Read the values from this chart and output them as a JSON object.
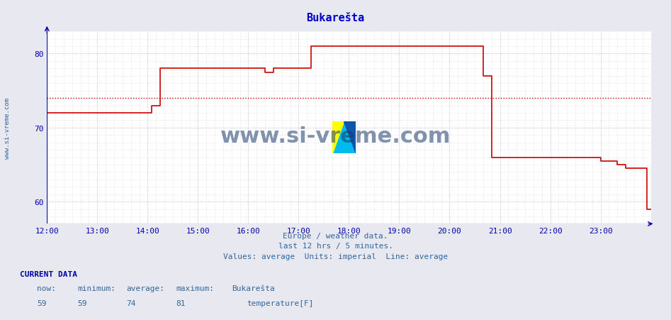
{
  "title": "Bukarešta",
  "bg_color": "#e8e8f0",
  "plot_bg_color": "#ffffff",
  "line_color": "#cc0000",
  "avg_line_color": "#cc0000",
  "avg_line_value": 74,
  "grid_color_major": "#aaaacc",
  "grid_color_minor": "#ccccdd",
  "axis_color": "#0000aa",
  "text_color": "#336699",
  "xlabel_text": "Europe / weather data.\nlast 12 hrs / 5 minutes.\nValues: average  Units: imperial  Line: average",
  "ylabel_left": "www.si-vreme.com",
  "title_color": "#0000cc",
  "xlim": [
    0,
    144
  ],
  "ylim": [
    57,
    83
  ],
  "yticks": [
    60,
    70,
    80
  ],
  "xtick_positions": [
    0,
    12,
    24,
    36,
    48,
    60,
    72,
    84,
    96,
    108,
    120,
    132
  ],
  "xtick_labels": [
    "12:00",
    "13:00",
    "14:00",
    "15:00",
    "16:00",
    "17:00",
    "18:00",
    "19:00",
    "20:00",
    "21:00",
    "22:00",
    "23:00"
  ],
  "current_data_label": "CURRENT DATA",
  "now_val": "59",
  "min_val": "59",
  "avg_val": "74",
  "max_val": "81",
  "station": "Bukarešta",
  "series_label": "temperature[F]",
  "legend_color": "#cc0000",
  "step_x": [
    0,
    25,
    25,
    27,
    27,
    52,
    52,
    54,
    54,
    63,
    63,
    65,
    65,
    104,
    104,
    106,
    106,
    132,
    132,
    136,
    136,
    138,
    138,
    143,
    143,
    144
  ],
  "step_y": [
    72,
    72,
    73,
    73,
    78,
    78,
    77.5,
    77.5,
    78,
    78,
    81,
    81,
    81,
    81,
    77,
    77,
    66,
    66,
    65.5,
    65.5,
    65,
    65,
    64.5,
    64.5,
    59,
    59
  ]
}
